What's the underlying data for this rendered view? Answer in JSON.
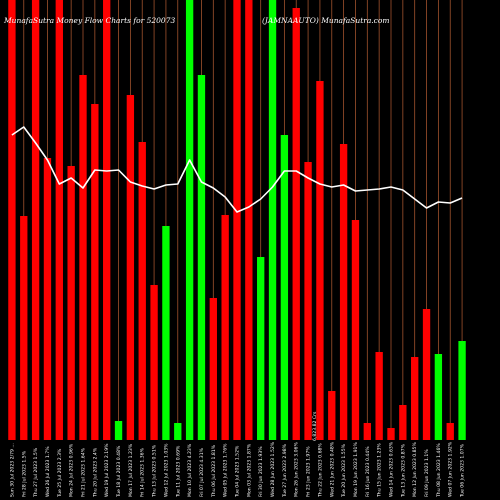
{
  "chart_data": {
    "type": "bar",
    "title_left": "MunafaSutra Money Flow Charts for 520073",
    "title_right": "(JAMNAAUTO) MunafaSutra.com",
    "ylim": [
      0,
      440
    ],
    "line_ylim": [
      0,
      440
    ],
    "colors": {
      "background": "#000000",
      "up": "#00ff00",
      "down": "#ff0000",
      "grid": "#a0522d",
      "line": "#ffffff"
    },
    "bars": [
      {
        "label": "Sun 30 Jul 2023 2/79 ...",
        "value": 440,
        "color": "down"
      },
      {
        "label": "Fri 28 Jul 2023 1.5%",
        "value": 224,
        "color": "down"
      },
      {
        "label": "Thu 27 Jul 2023 1.5%",
        "value": 440,
        "color": "down"
      },
      {
        "label": "Wed 26 Jul 2023 1.7%",
        "value": 282,
        "color": "down"
      },
      {
        "label": "Tue 25 Jul 2023 2.3%",
        "value": 440,
        "color": "down"
      },
      {
        "label": "Mon 24 Jul 2023 0.96%",
        "value": 274,
        "color": "down"
      },
      {
        "label": "Fri 21 Jul 2023 1.64%",
        "value": 365,
        "color": "down"
      },
      {
        "label": "Thu 20 Jul 2023 2.4%",
        "value": 336,
        "color": "down"
      },
      {
        "label": "Wed 19 Jul 2023 2.19%",
        "value": 440,
        "color": "down"
      },
      {
        "label": "Tue 18 Jul 2023 0.48%",
        "value": 19,
        "color": "up"
      },
      {
        "label": "Mon 17 Jul 2023 1.23%",
        "value": 345,
        "color": "down"
      },
      {
        "label": "Fri 14 Jul 2023 1.36%",
        "value": 298,
        "color": "down"
      },
      {
        "label": "Thu 13 Jul 2023 0.51%",
        "value": 155,
        "color": "down"
      },
      {
        "label": "Wed 12 Jul 2023 1.03%",
        "value": 214,
        "color": "up"
      },
      {
        "label": "Tue 11 Jul 2023 0.69%",
        "value": 17,
        "color": "up"
      },
      {
        "label": "Mon 10 Jul 2023 4.23%",
        "value": 440,
        "color": "up"
      },
      {
        "label": "Fri 07 Jul 2023 4.31%",
        "value": 365,
        "color": "up"
      },
      {
        "label": "Thu 06 Jul 2023 1.81%",
        "value": 142,
        "color": "down"
      },
      {
        "label": "Wed 05 Jul 2023 1.76%",
        "value": 225,
        "color": "down"
      },
      {
        "label": "Tue 04 Jul 2023 1.52%",
        "value": 440,
        "color": "down"
      },
      {
        "label": "Mon 03 Jul 2023 1.87%",
        "value": 440,
        "color": "down"
      },
      {
        "label": "Fri 30 Jun 2023 1.93%",
        "value": 183,
        "color": "up"
      },
      {
        "label": "Wed 28 Jun 2023 1.52%",
        "value": 440,
        "color": "up"
      },
      {
        "label": "Tue 27 Jun 2023 2.98%",
        "value": 305,
        "color": "up"
      },
      {
        "label": "Mon 26 Jun 2023 3.06%",
        "value": 432,
        "color": "down"
      },
      {
        "label": "Fri 23 Jun 2023 1.97%",
        "value": 278,
        "color": "down"
      },
      {
        "label": "Thu 22 Jun 2023 0.68%",
        "value": 359,
        "color": "down"
      },
      {
        "label": "Wed 21 Jun 2023 0.48%",
        "value": 49,
        "color": "down"
      },
      {
        "label": "Tue 20 Jun 2023 1.55%",
        "value": 296,
        "color": "down"
      },
      {
        "label": "Mon 19 Jun 2023 1.91%",
        "value": 220,
        "color": "down"
      },
      {
        "label": "Fri 16 Jun 2023 0.44%",
        "value": 17,
        "color": "down"
      },
      {
        "label": "Thu 15 Jun 2023 1.23%",
        "value": 88,
        "color": "down"
      },
      {
        "label": "Wed 14 Jun 2023 0.63%",
        "value": 12,
        "color": "down"
      },
      {
        "label": "Tue 13 Jun 2023 0.87%",
        "value": 35,
        "color": "down"
      },
      {
        "label": "Mon 12 Jun 2023 0.85%",
        "value": 83,
        "color": "down"
      },
      {
        "label": "Fri 09 Jun 2023 1.1%",
        "value": 131,
        "color": "down"
      },
      {
        "label": "Thu 08 Jun 2023 1.46%",
        "value": 86,
        "color": "up"
      },
      {
        "label": "Wed 07 Jun 2023 1.92%",
        "value": 17,
        "color": "down"
      },
      {
        "label": "Tue 06 Jun 2023 1.07%",
        "value": 99,
        "color": "up"
      }
    ],
    "line_values": [
      305,
      313,
      297,
      280,
      256,
      262,
      252,
      270,
      269,
      270,
      258,
      254,
      251,
      255,
      256,
      280,
      258,
      252,
      243,
      228,
      233,
      241,
      253,
      269,
      269,
      262,
      256,
      253,
      255,
      249,
      250,
      251,
      253,
      250,
      241,
      232,
      238,
      237,
      242
    ],
    "axis_label": "6,823.82 Crs"
  }
}
